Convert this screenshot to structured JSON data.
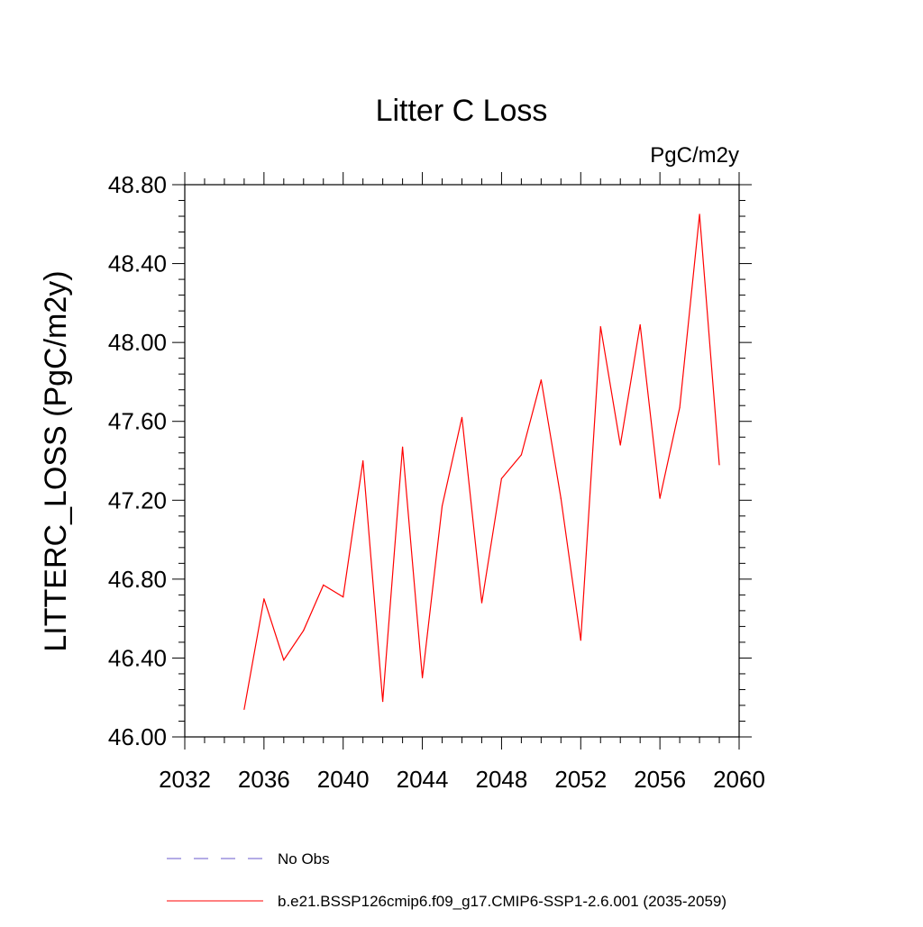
{
  "chart_data": {
    "type": "line",
    "title": "Litter C Loss",
    "units": "PgC/m2y",
    "ylabel": "LITTERC_LOSS  (PgC/m2y)",
    "xlabel": "",
    "xlim": [
      2032,
      2060
    ],
    "ylim": [
      46.0,
      48.8
    ],
    "x_ticks": [
      2032,
      2036,
      2040,
      2044,
      2048,
      2052,
      2056,
      2060
    ],
    "x_tick_labels": [
      "2032",
      "2036",
      "2040",
      "2044",
      "2048",
      "2052",
      "2056",
      "2060"
    ],
    "y_ticks": [
      46.0,
      46.4,
      46.8,
      47.2,
      47.6,
      48.0,
      48.4,
      48.8
    ],
    "y_tick_labels": [
      "46.00",
      "46.40",
      "46.80",
      "47.20",
      "47.60",
      "48.00",
      "48.40",
      "48.80"
    ],
    "grid": false,
    "legend_position": "bottom",
    "legend": [
      {
        "label": "No Obs",
        "color": "#6a5acd",
        "style": "dashed"
      },
      {
        "label": "b.e21.BSSP126cmip6.f09_g17.CMIP6-SSP1-2.6.001 (2035-2059)",
        "color": "#ff0000",
        "style": "solid"
      }
    ],
    "series": [
      {
        "color": "#ff0000",
        "x": [
          2035,
          2036,
          2037,
          2038,
          2039,
          2040,
          2041,
          2042,
          2043,
          2044,
          2045,
          2046,
          2047,
          2048,
          2049,
          2050,
          2051,
          2052,
          2053,
          2054,
          2055,
          2056,
          2057,
          2058,
          2059
        ],
        "y": [
          46.14,
          46.7,
          46.39,
          46.54,
          46.77,
          46.71,
          47.4,
          46.18,
          47.47,
          46.3,
          47.17,
          47.62,
          46.68,
          47.31,
          47.43,
          47.81,
          47.21,
          46.49,
          48.08,
          47.48,
          48.09,
          47.21,
          47.67,
          48.65,
          47.38
        ]
      }
    ]
  }
}
